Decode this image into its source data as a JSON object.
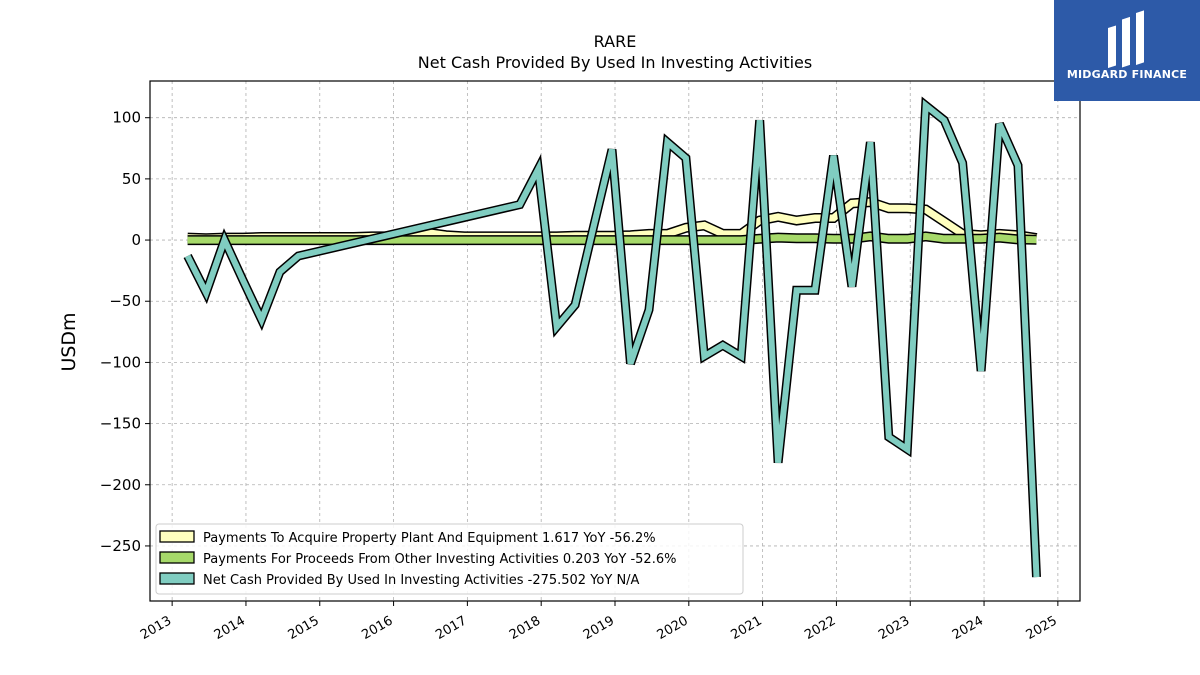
{
  "chart_data": {
    "type": "line",
    "title": "RARE",
    "subtitle": "Net Cash Provided By Used In Investing Activities",
    "xlabel": "",
    "ylabel": "USDm",
    "xlim": [
      2012.7,
      2025.3
    ],
    "ylim": [
      -295,
      130
    ],
    "x_ticks": [
      "2013",
      "2014",
      "2015",
      "2016",
      "2017",
      "2018",
      "2019",
      "2020",
      "2021",
      "2022",
      "2023",
      "2024",
      "2025"
    ],
    "y_ticks": [
      100,
      50,
      0,
      -50,
      -100,
      -150,
      -200,
      -250
    ],
    "y_tick_labels": [
      "100",
      "50",
      "0",
      "−50",
      "−100",
      "−150",
      "−200",
      "−250"
    ],
    "grid": true,
    "legend_position": "lower-left",
    "series": [
      {
        "name": "Payments To Acquire Property Plant And Equipment  1.617 YoY -56.2%",
        "color": "#ffffbf",
        "style": "band",
        "x": [
          2013.21,
          2013.46,
          2013.71,
          2013.96,
          2014.21,
          2014.46,
          2014.71,
          2014.96,
          2015.21,
          2015.46,
          2015.71,
          2015.96,
          2016.21,
          2016.46,
          2016.71,
          2016.96,
          2017.21,
          2017.46,
          2017.71,
          2017.96,
          2018.21,
          2018.46,
          2018.71,
          2018.96,
          2019.21,
          2019.46,
          2019.71,
          2019.96,
          2020.21,
          2020.46,
          2020.71,
          2020.96,
          2021.21,
          2021.46,
          2021.71,
          2021.96,
          2022.21,
          2022.46,
          2022.71,
          2022.96,
          2023.21,
          2023.46,
          2023.71,
          2023.96,
          2024.21,
          2024.46,
          2024.71
        ],
        "values": [
          2,
          1.5,
          2,
          2,
          2.5,
          2.5,
          2.5,
          2.5,
          2.5,
          2.5,
          3,
          3,
          3,
          6,
          4,
          3,
          3,
          3,
          3,
          3,
          3,
          3.5,
          3.5,
          3.5,
          4,
          5,
          5,
          10,
          12,
          5,
          5,
          16,
          19,
          16,
          18,
          18,
          30,
          31,
          26,
          26,
          25,
          15,
          5,
          4,
          5,
          4,
          1.617
        ]
      },
      {
        "name": "Payments For Proceeds From Other Investing Activities  0.203 YoY -52.6%",
        "color": "#a6d96a",
        "style": "band",
        "x": [
          2013.21,
          2013.46,
          2013.71,
          2013.96,
          2014.21,
          2014.46,
          2014.71,
          2014.96,
          2015.21,
          2015.46,
          2015.71,
          2015.96,
          2016.21,
          2016.46,
          2016.71,
          2016.96,
          2017.21,
          2017.46,
          2017.71,
          2017.96,
          2018.21,
          2018.46,
          2018.71,
          2018.96,
          2019.21,
          2019.46,
          2019.71,
          2019.96,
          2020.21,
          2020.46,
          2020.71,
          2020.96,
          2021.21,
          2021.46,
          2021.71,
          2021.96,
          2022.21,
          2022.46,
          2022.71,
          2022.96,
          2023.21,
          2023.46,
          2023.71,
          2023.96,
          2024.21,
          2024.46,
          2024.71
        ],
        "values": [
          0,
          0,
          0,
          0,
          0,
          0,
          0,
          0,
          0,
          0,
          0,
          0,
          0,
          0,
          0,
          0,
          0,
          0,
          0,
          0,
          0,
          0,
          0,
          0,
          0,
          0,
          0,
          0,
          0,
          0,
          0,
          1,
          2,
          1.5,
          1.5,
          1,
          1,
          3,
          1,
          1,
          3,
          1,
          1,
          1,
          2,
          0.5,
          0.203
        ]
      },
      {
        "name": "Net Cash Provided By Used In Investing Activities  -275.502 YoY N/A",
        "color": "#80cdc1",
        "style": "line",
        "x": [
          2013.21,
          2013.46,
          2013.71,
          2013.96,
          2014.21,
          2014.46,
          2014.71,
          2017.71,
          2017.96,
          2018.21,
          2018.46,
          2018.71,
          2018.96,
          2019.21,
          2019.46,
          2019.71,
          2019.96,
          2020.21,
          2020.46,
          2020.71,
          2020.96,
          2021.21,
          2021.46,
          2021.71,
          2021.96,
          2022.21,
          2022.46,
          2022.71,
          2022.96,
          2023.21,
          2023.46,
          2023.71,
          2023.96,
          2024.21,
          2024.46,
          2024.71
        ],
        "values": [
          -13,
          -43,
          0,
          -33,
          -65,
          -26,
          -13,
          29,
          58,
          -71,
          -53,
          11,
          74,
          -101,
          -57,
          80,
          67,
          -95,
          -86,
          -95,
          98,
          -182,
          -41,
          -41,
          69,
          -38,
          80,
          -161,
          -171,
          110,
          98,
          63,
          -107,
          95,
          61,
          -275.502
        ]
      }
    ]
  },
  "brand": {
    "name": "MIDGARD FINANCE",
    "color": "#2d5aa8"
  }
}
